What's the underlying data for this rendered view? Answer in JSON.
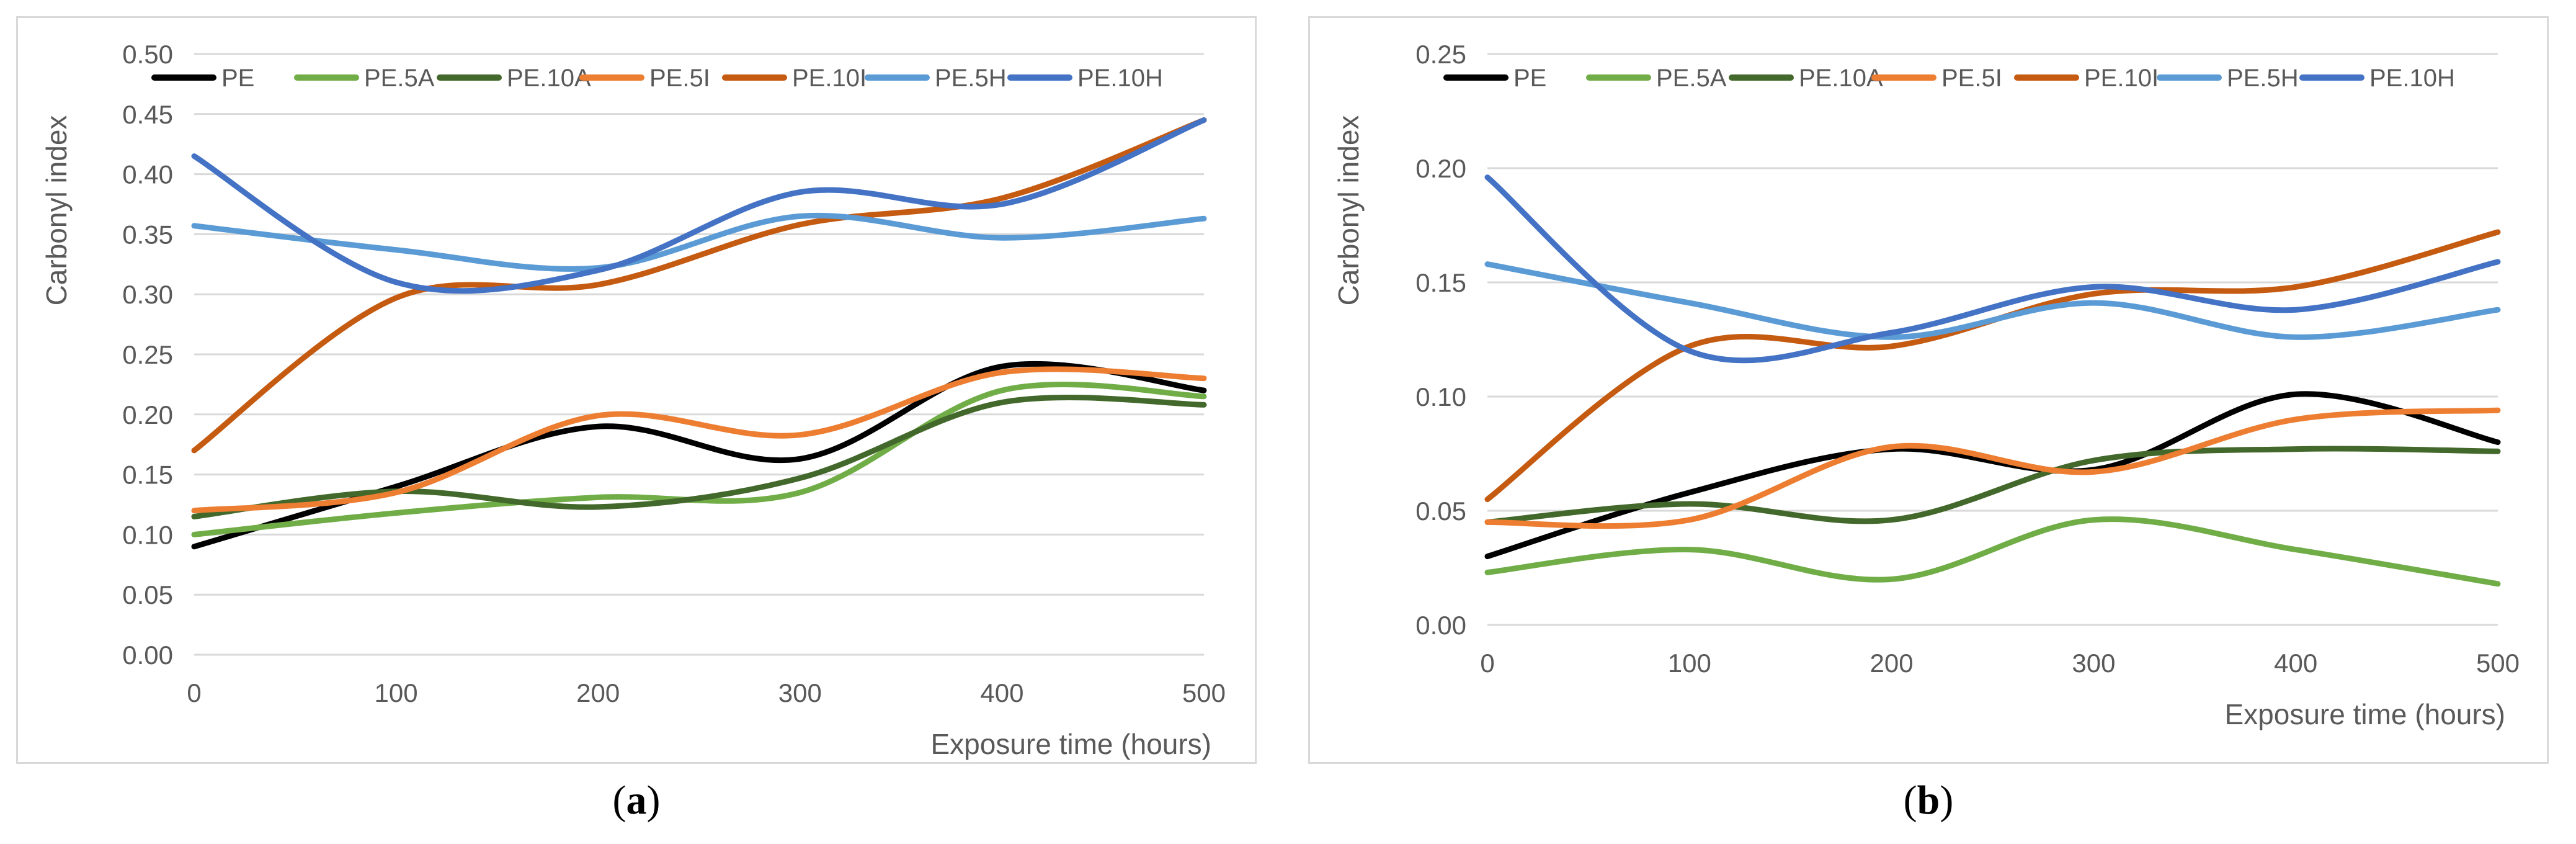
{
  "chart_data": [
    {
      "type": "line",
      "panel_label": "a",
      "xlabel": "Exposure time (hours)",
      "ylabel": "Carbonyl index",
      "xlim": [
        0,
        500
      ],
      "ylim": [
        0,
        0.5
      ],
      "xticks": [
        0,
        100,
        200,
        300,
        400,
        500
      ],
      "yticks": [
        "0.00",
        "0.05",
        "0.10",
        "0.15",
        "0.20",
        "0.25",
        "0.30",
        "0.35",
        "0.40",
        "0.45",
        "0.50"
      ],
      "grid": true,
      "legend_position": "top",
      "x": [
        0,
        100,
        200,
        300,
        400,
        500
      ],
      "series": [
        {
          "name": "PE",
          "color": "#000000",
          "values": [
            0.09,
            0.14,
            0.19,
            0.163,
            0.24,
            0.22
          ]
        },
        {
          "name": "PE.5A",
          "color": "#70ad47",
          "values": [
            0.1,
            0.118,
            0.131,
            0.135,
            0.22,
            0.215
          ]
        },
        {
          "name": "PE.10A",
          "color": "#43682b",
          "values": [
            0.115,
            0.136,
            0.123,
            0.147,
            0.21,
            0.208
          ]
        },
        {
          "name": "PE.5I",
          "color": "#ed7d31",
          "values": [
            0.12,
            0.135,
            0.199,
            0.183,
            0.235,
            0.23
          ]
        },
        {
          "name": "PE.10I",
          "color": "#c55a11",
          "values": [
            0.17,
            0.297,
            0.308,
            0.358,
            0.38,
            0.445
          ]
        },
        {
          "name": "PE.5H",
          "color": "#5b9bd5",
          "values": [
            0.357,
            0.337,
            0.322,
            0.365,
            0.347,
            0.363
          ]
        },
        {
          "name": "PE.10H",
          "color": "#4472c4",
          "values": [
            0.415,
            0.31,
            0.32,
            0.385,
            0.375,
            0.445
          ]
        }
      ]
    },
    {
      "type": "line",
      "panel_label": "b",
      "xlabel": "Exposure time (hours)",
      "ylabel": "Carbonyl index",
      "xlim": [
        0,
        500
      ],
      "ylim": [
        0,
        0.25
      ],
      "xticks": [
        0,
        100,
        200,
        300,
        400,
        500
      ],
      "yticks": [
        "0.00",
        "0.05",
        "0.10",
        "0.15",
        "0.20",
        "0.25"
      ],
      "grid": true,
      "legend_position": "top",
      "x": [
        0,
        100,
        200,
        300,
        400,
        500
      ],
      "series": [
        {
          "name": "PE",
          "color": "#000000",
          "values": [
            0.03,
            0.058,
            0.077,
            0.068,
            0.101,
            0.08
          ]
        },
        {
          "name": "PE.5A",
          "color": "#70ad47",
          "values": [
            0.023,
            0.033,
            0.02,
            0.046,
            0.033,
            0.018
          ]
        },
        {
          "name": "PE.10A",
          "color": "#43682b",
          "values": [
            0.045,
            0.053,
            0.046,
            0.072,
            0.077,
            0.076
          ]
        },
        {
          "name": "PE.5I",
          "color": "#ed7d31",
          "values": [
            0.045,
            0.046,
            0.078,
            0.067,
            0.09,
            0.094
          ]
        },
        {
          "name": "PE.10I",
          "color": "#c55a11",
          "values": [
            0.055,
            0.122,
            0.122,
            0.145,
            0.148,
            0.172
          ]
        },
        {
          "name": "PE.5H",
          "color": "#5b9bd5",
          "values": [
            0.158,
            0.141,
            0.126,
            0.141,
            0.126,
            0.138
          ]
        },
        {
          "name": "PE.10H",
          "color": "#4472c4",
          "values": [
            0.196,
            0.12,
            0.128,
            0.148,
            0.138,
            0.159
          ]
        }
      ]
    }
  ]
}
